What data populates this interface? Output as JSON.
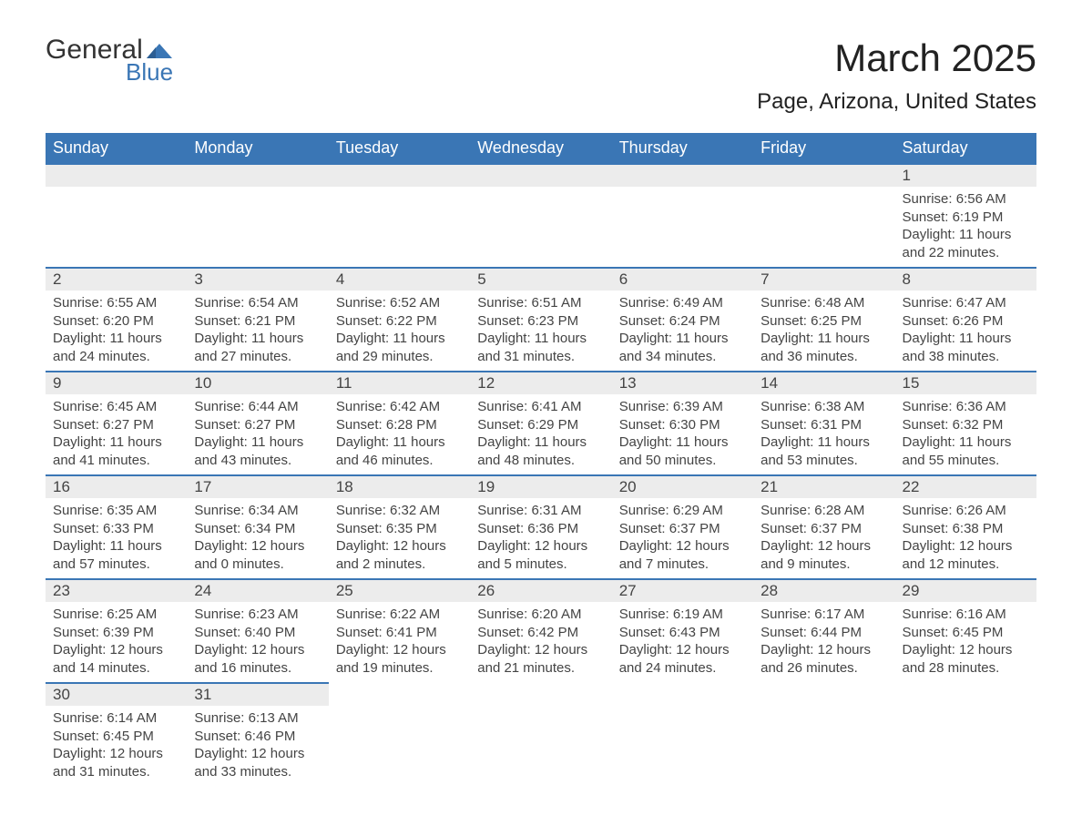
{
  "logo": {
    "word1": "General",
    "word2": "Blue",
    "mark_color": "#3a76b5"
  },
  "title": "March 2025",
  "subtitle": "Page, Arizona, United States",
  "colors": {
    "header_bg": "#3a76b5",
    "header_text": "#ffffff",
    "daynum_bg": "#ececec",
    "row_border": "#3a76b5",
    "body_text": "#444444",
    "page_bg": "#ffffff"
  },
  "typography": {
    "title_fontsize": 42,
    "subtitle_fontsize": 24,
    "header_fontsize": 18,
    "daynum_fontsize": 17,
    "detail_fontsize": 15
  },
  "day_headers": [
    "Sunday",
    "Monday",
    "Tuesday",
    "Wednesday",
    "Thursday",
    "Friday",
    "Saturday"
  ],
  "weeks": [
    [
      null,
      null,
      null,
      null,
      null,
      null,
      {
        "n": "1",
        "sunrise": "6:56 AM",
        "sunset": "6:19 PM",
        "daylight": "11 hours and 22 minutes."
      }
    ],
    [
      {
        "n": "2",
        "sunrise": "6:55 AM",
        "sunset": "6:20 PM",
        "daylight": "11 hours and 24 minutes."
      },
      {
        "n": "3",
        "sunrise": "6:54 AM",
        "sunset": "6:21 PM",
        "daylight": "11 hours and 27 minutes."
      },
      {
        "n": "4",
        "sunrise": "6:52 AM",
        "sunset": "6:22 PM",
        "daylight": "11 hours and 29 minutes."
      },
      {
        "n": "5",
        "sunrise": "6:51 AM",
        "sunset": "6:23 PM",
        "daylight": "11 hours and 31 minutes."
      },
      {
        "n": "6",
        "sunrise": "6:49 AM",
        "sunset": "6:24 PM",
        "daylight": "11 hours and 34 minutes."
      },
      {
        "n": "7",
        "sunrise": "6:48 AM",
        "sunset": "6:25 PM",
        "daylight": "11 hours and 36 minutes."
      },
      {
        "n": "8",
        "sunrise": "6:47 AM",
        "sunset": "6:26 PM",
        "daylight": "11 hours and 38 minutes."
      }
    ],
    [
      {
        "n": "9",
        "sunrise": "6:45 AM",
        "sunset": "6:27 PM",
        "daylight": "11 hours and 41 minutes."
      },
      {
        "n": "10",
        "sunrise": "6:44 AM",
        "sunset": "6:27 PM",
        "daylight": "11 hours and 43 minutes."
      },
      {
        "n": "11",
        "sunrise": "6:42 AM",
        "sunset": "6:28 PM",
        "daylight": "11 hours and 46 minutes."
      },
      {
        "n": "12",
        "sunrise": "6:41 AM",
        "sunset": "6:29 PM",
        "daylight": "11 hours and 48 minutes."
      },
      {
        "n": "13",
        "sunrise": "6:39 AM",
        "sunset": "6:30 PM",
        "daylight": "11 hours and 50 minutes."
      },
      {
        "n": "14",
        "sunrise": "6:38 AM",
        "sunset": "6:31 PM",
        "daylight": "11 hours and 53 minutes."
      },
      {
        "n": "15",
        "sunrise": "6:36 AM",
        "sunset": "6:32 PM",
        "daylight": "11 hours and 55 minutes."
      }
    ],
    [
      {
        "n": "16",
        "sunrise": "6:35 AM",
        "sunset": "6:33 PM",
        "daylight": "11 hours and 57 minutes."
      },
      {
        "n": "17",
        "sunrise": "6:34 AM",
        "sunset": "6:34 PM",
        "daylight": "12 hours and 0 minutes."
      },
      {
        "n": "18",
        "sunrise": "6:32 AM",
        "sunset": "6:35 PM",
        "daylight": "12 hours and 2 minutes."
      },
      {
        "n": "19",
        "sunrise": "6:31 AM",
        "sunset": "6:36 PM",
        "daylight": "12 hours and 5 minutes."
      },
      {
        "n": "20",
        "sunrise": "6:29 AM",
        "sunset": "6:37 PM",
        "daylight": "12 hours and 7 minutes."
      },
      {
        "n": "21",
        "sunrise": "6:28 AM",
        "sunset": "6:37 PM",
        "daylight": "12 hours and 9 minutes."
      },
      {
        "n": "22",
        "sunrise": "6:26 AM",
        "sunset": "6:38 PM",
        "daylight": "12 hours and 12 minutes."
      }
    ],
    [
      {
        "n": "23",
        "sunrise": "6:25 AM",
        "sunset": "6:39 PM",
        "daylight": "12 hours and 14 minutes."
      },
      {
        "n": "24",
        "sunrise": "6:23 AM",
        "sunset": "6:40 PM",
        "daylight": "12 hours and 16 minutes."
      },
      {
        "n": "25",
        "sunrise": "6:22 AM",
        "sunset": "6:41 PM",
        "daylight": "12 hours and 19 minutes."
      },
      {
        "n": "26",
        "sunrise": "6:20 AM",
        "sunset": "6:42 PM",
        "daylight": "12 hours and 21 minutes."
      },
      {
        "n": "27",
        "sunrise": "6:19 AM",
        "sunset": "6:43 PM",
        "daylight": "12 hours and 24 minutes."
      },
      {
        "n": "28",
        "sunrise": "6:17 AM",
        "sunset": "6:44 PM",
        "daylight": "12 hours and 26 minutes."
      },
      {
        "n": "29",
        "sunrise": "6:16 AM",
        "sunset": "6:45 PM",
        "daylight": "12 hours and 28 minutes."
      }
    ],
    [
      {
        "n": "30",
        "sunrise": "6:14 AM",
        "sunset": "6:45 PM",
        "daylight": "12 hours and 31 minutes."
      },
      {
        "n": "31",
        "sunrise": "6:13 AM",
        "sunset": "6:46 PM",
        "daylight": "12 hours and 33 minutes."
      },
      null,
      null,
      null,
      null,
      null
    ]
  ],
  "labels": {
    "sunrise": "Sunrise: ",
    "sunset": "Sunset: ",
    "daylight": "Daylight: "
  }
}
